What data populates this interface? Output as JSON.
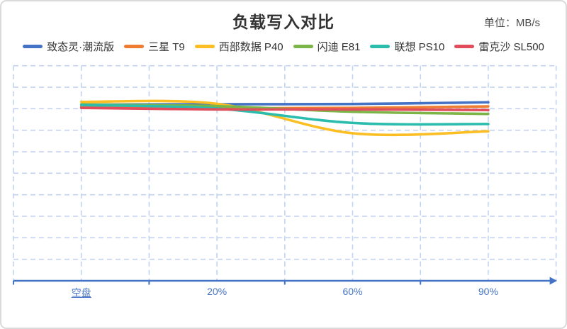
{
  "chart_data": {
    "type": "line",
    "title": "负载写入对比",
    "unit_label": "单位：MB/s",
    "categories": [
      "空盘",
      "20%",
      "60%",
      "90%"
    ],
    "underlined_category": "空盘",
    "xlabel": "",
    "ylabel": "",
    "ylim": [
      0,
      10
    ],
    "y_axis_tick_labels": "none (y axis is unlabeled; values below are in grid units, plot height = 10 rows)",
    "grid": "dashed light-blue, 8 columns x 10 rows",
    "legend_position": "top",
    "series": [
      {
        "name": "致态灵·潮流版",
        "color": "#4472C4",
        "values": [
          8.19,
          8.21,
          8.22,
          8.3
        ]
      },
      {
        "name": "三星 T9",
        "color": "#EE7D31",
        "values": [
          8.09,
          8.03,
          8.04,
          8.11
        ]
      },
      {
        "name": "西部数据 P40",
        "color": "#FBBF24",
        "values": [
          8.32,
          8.23,
          6.86,
          6.95
        ]
      },
      {
        "name": "闪迪 E81",
        "color": "#7CB547",
        "values": [
          8.2,
          8.12,
          7.86,
          7.76
        ]
      },
      {
        "name": "联想 PS10",
        "color": "#2ABDAD",
        "values": [
          8.17,
          8.01,
          7.34,
          7.29
        ]
      },
      {
        "name": "雷克沙 SL500",
        "color": "#E14D5B",
        "values": [
          8.04,
          7.97,
          7.97,
          7.94
        ]
      }
    ],
    "colors": {
      "axis": "#4472C4",
      "grid": "#C3D2F0",
      "x_label": "#4472C4",
      "title": "#333333",
      "unit_label": "#4d4d4d",
      "legend_text": "#333333",
      "card_border": "#dadada",
      "background": "#ffffff"
    }
  }
}
